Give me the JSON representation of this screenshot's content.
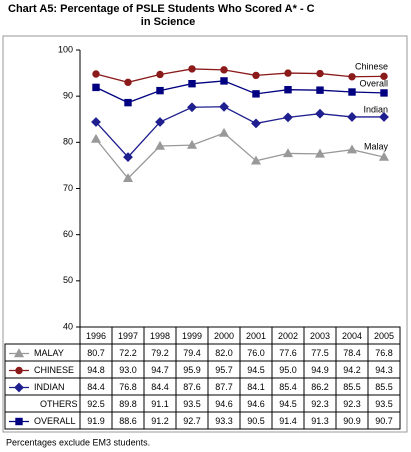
{
  "chart_data": {
    "type": "line",
    "title_lines": [
      "Chart A5:  Percentage of PSLE Students Who Scored A* - C",
      "in Science"
    ],
    "categories": [
      "1996",
      "1997",
      "1998",
      "1999",
      "2000",
      "2001",
      "2002",
      "2003",
      "2004",
      "2005"
    ],
    "series": [
      {
        "name": "MALAY",
        "color": "#999999",
        "marker": "triangle",
        "values": [
          80.7,
          72.2,
          79.2,
          79.4,
          82.0,
          76.0,
          77.6,
          77.5,
          78.4,
          76.8
        ],
        "value_labels": [
          "80.7",
          "72.2",
          "79.2",
          "79.4",
          "82.0",
          "76.0",
          "77.6",
          "77.5",
          "78.4",
          "76.8"
        ]
      },
      {
        "name": "CHINESE",
        "color": "#8b1a1a",
        "marker": "circle",
        "values": [
          94.8,
          93.0,
          94.7,
          95.9,
          95.7,
          94.5,
          95.0,
          94.9,
          94.2,
          94.3
        ],
        "value_labels": [
          "94.8",
          "93.0",
          "94.7",
          "95.9",
          "95.7",
          "94.5",
          "95.0",
          "94.9",
          "94.2",
          "94.3"
        ]
      },
      {
        "name": "INDIAN",
        "color": "#1f1f8f",
        "marker": "diamond",
        "values": [
          84.4,
          76.8,
          84.4,
          87.6,
          87.7,
          84.1,
          85.4,
          86.2,
          85.5,
          85.5
        ]
      },
      {
        "name": "OTHERS",
        "values": [
          92.5,
          89.8,
          91.1,
          93.5,
          94.6,
          94.6,
          94.5,
          92.3,
          92.3,
          93.5
        ]
      },
      {
        "name": "OVERALL",
        "color": "#000080",
        "marker": "square",
        "values": [
          91.9,
          88.6,
          91.2,
          92.7,
          93.3,
          90.5,
          91.4,
          91.3,
          90.9,
          90.7
        ]
      }
    ],
    "annotations": [
      "Chinese",
      "Overall",
      "Indian",
      "Malay"
    ],
    "ylim": [
      40,
      100
    ],
    "yticks": [
      40,
      50,
      60,
      70,
      80,
      90,
      100
    ],
    "note": "Percentages exclude EM3 students."
  }
}
